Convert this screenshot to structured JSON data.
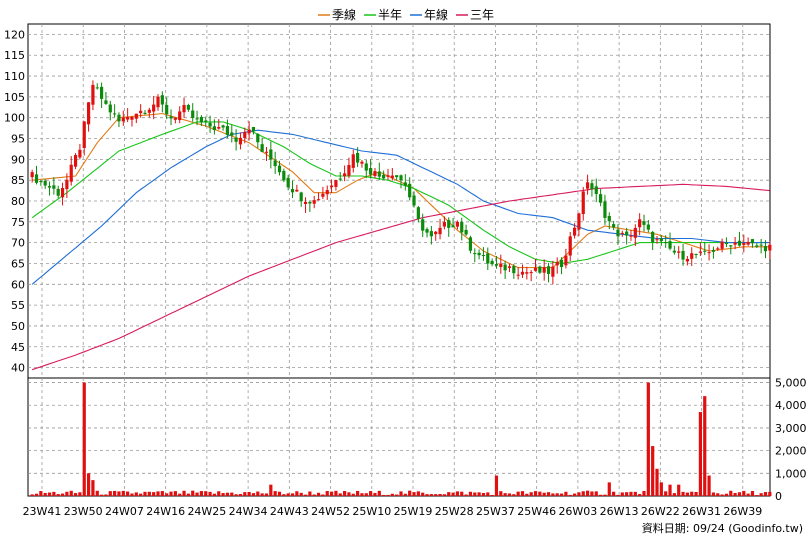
{
  "chart_data": {
    "type": "candlestick",
    "legend": [
      {
        "name": "季線",
        "color": "#e07b16"
      },
      {
        "name": "半年",
        "color": "#19c519"
      },
      {
        "name": "年線",
        "color": "#1f6fd6"
      },
      {
        "name": "三年",
        "color": "#d81b60"
      }
    ],
    "legend_position": "top-center",
    "colors": {
      "up": "#e01010",
      "down": "#0c8a0c",
      "volume": "#e01010",
      "grid": "#999999"
    },
    "x_tick_labels": [
      "23W41",
      "23W50",
      "24W07",
      "24W16",
      "24W25",
      "24W34",
      "24W43",
      "24W52",
      "25W10",
      "25W19",
      "25W28",
      "25W37",
      "25W46",
      "26W03",
      "26W13",
      "26W22",
      "26W31",
      "26W39"
    ],
    "price_axis": {
      "ylim": [
        37.5,
        122.5
      ],
      "ticks": [
        40,
        45,
        50,
        55,
        60,
        65,
        70,
        75,
        80,
        85,
        90,
        95,
        100,
        105,
        110,
        115,
        120
      ]
    },
    "volume_axis": {
      "ylim": [
        0,
        5200
      ],
      "ticks": [
        "0",
        "1,000",
        "2,000",
        "3,000",
        "4,000",
        "5,000"
      ]
    },
    "grid": true,
    "close_anchors": [
      [
        0,
        86
      ],
      [
        3,
        84
      ],
      [
        6,
        82
      ],
      [
        8,
        85
      ],
      [
        11,
        93
      ],
      [
        14,
        108
      ],
      [
        17,
        103
      ],
      [
        20,
        99
      ],
      [
        23,
        101
      ],
      [
        26,
        102
      ],
      [
        29,
        104
      ],
      [
        32,
        100
      ],
      [
        35,
        102
      ],
      [
        38,
        99
      ],
      [
        41,
        98
      ],
      [
        44,
        97
      ],
      [
        47,
        95
      ],
      [
        50,
        98
      ],
      [
        53,
        92
      ],
      [
        56,
        89
      ],
      [
        59,
        84
      ],
      [
        62,
        81
      ],
      [
        65,
        80
      ],
      [
        68,
        83
      ],
      [
        71,
        86
      ],
      [
        74,
        91
      ],
      [
        77,
        88
      ],
      [
        80,
        86
      ],
      [
        83,
        87
      ],
      [
        86,
        84
      ],
      [
        89,
        75
      ],
      [
        92,
        71
      ],
      [
        95,
        74
      ],
      [
        98,
        75
      ],
      [
        101,
        69
      ],
      [
        104,
        66
      ],
      [
        107,
        64
      ],
      [
        110,
        64
      ],
      [
        113,
        63
      ],
      [
        116,
        63
      ],
      [
        119,
        63
      ],
      [
        122,
        65
      ],
      [
        125,
        74
      ],
      [
        128,
        85
      ],
      [
        131,
        79
      ],
      [
        134,
        73
      ],
      [
        137,
        71
      ],
      [
        140,
        75
      ],
      [
        143,
        71
      ],
      [
        146,
        69
      ],
      [
        149,
        67
      ],
      [
        152,
        67
      ],
      [
        155,
        67
      ],
      [
        158,
        69
      ],
      [
        161,
        70
      ],
      [
        164,
        70
      ],
      [
        167,
        69
      ],
      [
        170,
        69
      ]
    ],
    "ma_quarter": [
      [
        0,
        85
      ],
      [
        10,
        86
      ],
      [
        15,
        94
      ],
      [
        20,
        100
      ],
      [
        30,
        101
      ],
      [
        40,
        98
      ],
      [
        50,
        94
      ],
      [
        60,
        87
      ],
      [
        65,
        82
      ],
      [
        70,
        82
      ],
      [
        75,
        85
      ],
      [
        80,
        87
      ],
      [
        88,
        83
      ],
      [
        94,
        77
      ],
      [
        98,
        73
      ],
      [
        104,
        68
      ],
      [
        112,
        64
      ],
      [
        120,
        64
      ],
      [
        124,
        68
      ],
      [
        128,
        72
      ],
      [
        132,
        74
      ],
      [
        138,
        73
      ],
      [
        144,
        72
      ],
      [
        150,
        70
      ],
      [
        156,
        68
      ],
      [
        164,
        69
      ],
      [
        170,
        69
      ]
    ],
    "ma_half": [
      [
        0,
        76
      ],
      [
        8,
        82
      ],
      [
        14,
        87
      ],
      [
        20,
        92
      ],
      [
        30,
        96
      ],
      [
        38,
        99
      ],
      [
        44,
        99
      ],
      [
        50,
        97
      ],
      [
        58,
        93
      ],
      [
        64,
        89
      ],
      [
        70,
        86
      ],
      [
        76,
        86
      ],
      [
        82,
        85
      ],
      [
        88,
        83
      ],
      [
        96,
        79
      ],
      [
        104,
        73
      ],
      [
        110,
        69
      ],
      [
        116,
        66
      ],
      [
        122,
        65
      ],
      [
        128,
        66
      ],
      [
        134,
        68
      ],
      [
        140,
        70
      ],
      [
        146,
        70
      ],
      [
        152,
        70
      ],
      [
        160,
        70
      ],
      [
        170,
        70
      ]
    ],
    "ma_year": [
      [
        0,
        60
      ],
      [
        8,
        67
      ],
      [
        16,
        74
      ],
      [
        24,
        82
      ],
      [
        32,
        88
      ],
      [
        40,
        93
      ],
      [
        46,
        96
      ],
      [
        52,
        97
      ],
      [
        60,
        96
      ],
      [
        68,
        94
      ],
      [
        76,
        92
      ],
      [
        84,
        91
      ],
      [
        90,
        88
      ],
      [
        98,
        84
      ],
      [
        104,
        80
      ],
      [
        112,
        77
      ],
      [
        120,
        76
      ],
      [
        128,
        73
      ],
      [
        136,
        72
      ],
      [
        144,
        71
      ],
      [
        152,
        71
      ],
      [
        160,
        70
      ],
      [
        170,
        70
      ]
    ],
    "ma_3y": [
      [
        0,
        39.5
      ],
      [
        10,
        43
      ],
      [
        20,
        47
      ],
      [
        30,
        52
      ],
      [
        40,
        57
      ],
      [
        50,
        62
      ],
      [
        60,
        66
      ],
      [
        70,
        70
      ],
      [
        80,
        73
      ],
      [
        90,
        76
      ],
      [
        100,
        78
      ],
      [
        110,
        80
      ],
      [
        120,
        81.5
      ],
      [
        130,
        83
      ],
      [
        140,
        83.5
      ],
      [
        150,
        84
      ],
      [
        160,
        83.5
      ],
      [
        170,
        82.5
      ]
    ],
    "volume_spikes": [
      [
        12,
        5000
      ],
      [
        13,
        1000
      ],
      [
        14,
        700
      ],
      [
        55,
        500
      ],
      [
        107,
        900
      ],
      [
        133,
        600
      ],
      [
        142,
        5000
      ],
      [
        143,
        2200
      ],
      [
        144,
        1200
      ],
      [
        145,
        600
      ],
      [
        147,
        500
      ],
      [
        149,
        500
      ],
      [
        154,
        3700
      ],
      [
        155,
        4400
      ],
      [
        156,
        900
      ]
    ]
  },
  "footer": {
    "text": "資料日期: 09/24  (Goodinfo.tw)"
  }
}
